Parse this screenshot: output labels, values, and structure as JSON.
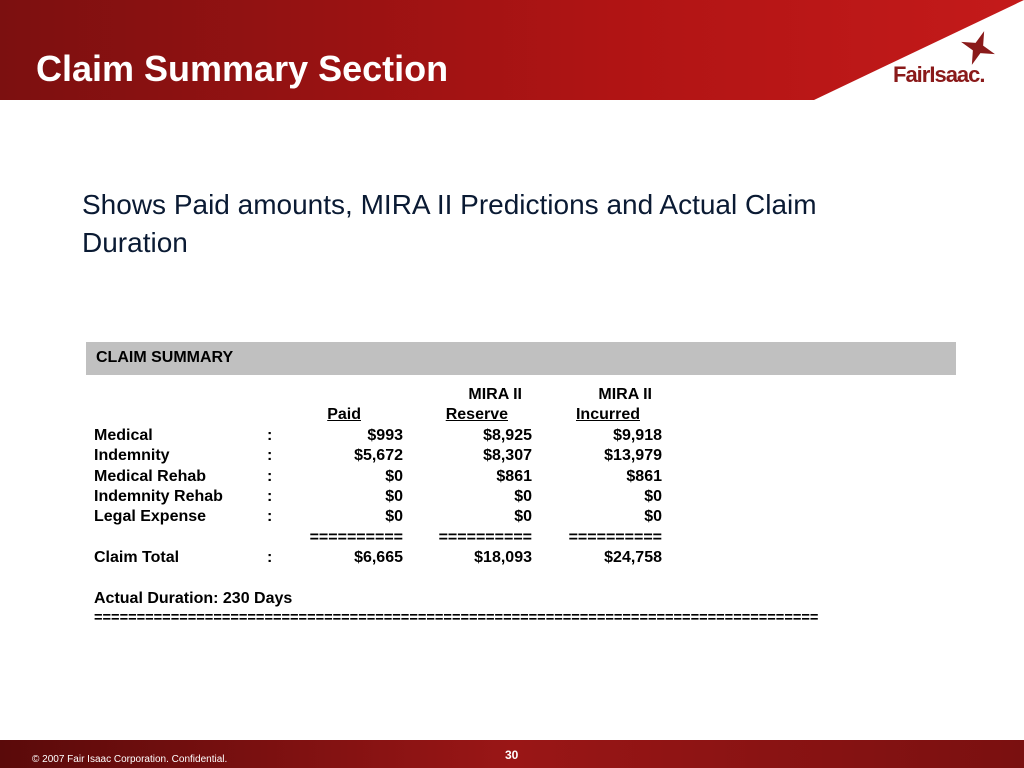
{
  "header": {
    "title": "Claim Summary Section",
    "logo": "FairIsaac."
  },
  "body": {
    "text": "Shows Paid amounts, MIRA II Predictions and Actual Claim Duration"
  },
  "table": {
    "title": "CLAIM SUMMARY",
    "header_top": [
      "MIRA II",
      "MIRA II"
    ],
    "header": [
      "Paid",
      "Reserve",
      "Incurred"
    ],
    "rows": [
      [
        "Medical",
        ":",
        "$993",
        "$8,925",
        "$9,918"
      ],
      [
        "Indemnity",
        ":",
        "$5,672",
        "$8,307",
        "$13,979"
      ],
      [
        "Medical Rehab",
        ":",
        "$0",
        "$861",
        "$861"
      ],
      [
        "Indemnity Rehab",
        ":",
        "$0",
        "$0",
        "$0"
      ],
      [
        "Legal Expense",
        ":",
        "$0",
        "$0",
        "$0"
      ]
    ],
    "separator": [
      "==========",
      "==========",
      "=========="
    ],
    "total": [
      "Claim Total",
      ":",
      "$6,665",
      "$18,093",
      "$24,758"
    ],
    "duration": "Actual Duration:  230 Days",
    "rule": "====================================================================================="
  },
  "footer": {
    "copyright": "© 2007 Fair Isaac Corporation. Confidential.",
    "page": "30"
  }
}
